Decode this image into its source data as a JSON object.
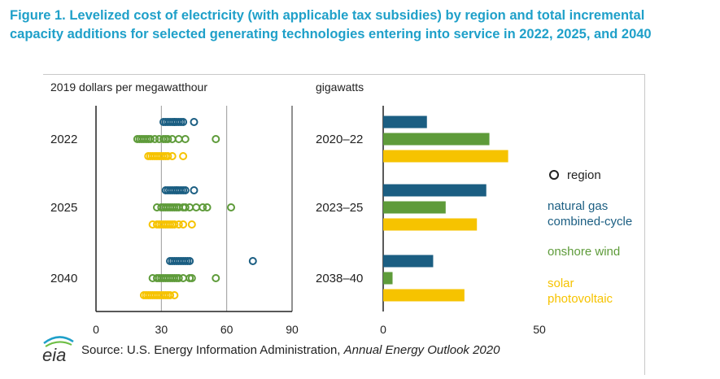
{
  "title": "Figure 1. Levelized cost of electricity (with applicable tax subsidies) by region and total incremental capacity additions for selected generating technologies entering into service in 2022, 2025, and 2040",
  "source_prefix": "Source:  U.S. Energy Information Administration, ",
  "source_title": "Annual Energy Outlook 2020",
  "logo_text": "eia",
  "colors": {
    "gas": "#1b5e82",
    "wind": "#5e9b3a",
    "solar": "#f6c300"
  },
  "chart_data": [
    {
      "type": "scatter",
      "ylabel": "2019 dollars per megawatthour",
      "xlim": [
        0,
        90
      ],
      "xticks": [
        "0",
        "30",
        "60",
        "90"
      ],
      "gridlines": [
        30,
        60
      ],
      "categories": [
        "2022",
        "2025",
        "2040"
      ],
      "series": [
        {
          "name": "natural gas combined-cycle",
          "color": "#1b5e82",
          "values": [
            [
              31,
              32,
              33,
              34,
              35,
              36,
              36,
              37,
              38,
              39,
              40,
              45
            ],
            [
              32,
              33,
              34,
              35,
              36,
              37,
              37,
              38,
              39,
              40,
              41,
              45
            ],
            [
              34,
              35,
              36,
              37,
              38,
              39,
              40,
              41,
              42,
              43,
              72
            ]
          ]
        },
        {
          "name": "onshore wind",
          "color": "#5e9b3a",
          "values": [
            [
              19,
              20,
              21,
              22,
              23,
              24,
              25,
              27,
              29,
              31,
              32,
              33,
              35,
              38,
              41,
              55
            ],
            [
              28,
              30,
              31,
              32,
              33,
              34,
              35,
              36,
              37,
              38,
              40,
              41,
              43,
              46,
              49,
              51,
              62
            ],
            [
              26,
              28,
              29,
              30,
              31,
              32,
              33,
              34,
              35,
              36,
              37,
              38,
              40,
              43,
              44,
              55
            ]
          ]
        },
        {
          "name": "solar photovoltaic",
          "color": "#f6c300",
          "values": [
            [
              24,
              25,
              26,
              27,
              28,
              29,
              30,
              31,
              32,
              33,
              35,
              40
            ],
            [
              26,
              28,
              29,
              30,
              31,
              32,
              33,
              34,
              35,
              36,
              38,
              40,
              44
            ],
            [
              22,
              23,
              24,
              25,
              26,
              27,
              28,
              29,
              30,
              31,
              32,
              33,
              34,
              36
            ]
          ]
        }
      ]
    },
    {
      "type": "bar",
      "orientation": "horizontal",
      "ylabel": "gigawatts",
      "xlim": [
        0,
        50
      ],
      "xticks": [
        "0",
        "50"
      ],
      "categories": [
        "2020–22",
        "2023–25",
        "2038–40"
      ],
      "series": [
        {
          "name": "natural gas combined-cycle",
          "color": "#1b5e82",
          "values": [
            14,
            33,
            16
          ]
        },
        {
          "name": "onshore wind",
          "color": "#5e9b3a",
          "values": [
            34,
            20,
            3
          ]
        },
        {
          "name": "solar photovoltaic",
          "color": "#f6c300",
          "values": [
            40,
            30,
            26
          ]
        }
      ]
    }
  ],
  "legend": {
    "region": "region",
    "gas_line1": "natural gas",
    "gas_line2": "combined-cycle",
    "wind": "onshore wind",
    "solar_line1": "solar",
    "solar_line2": "photovoltaic"
  }
}
